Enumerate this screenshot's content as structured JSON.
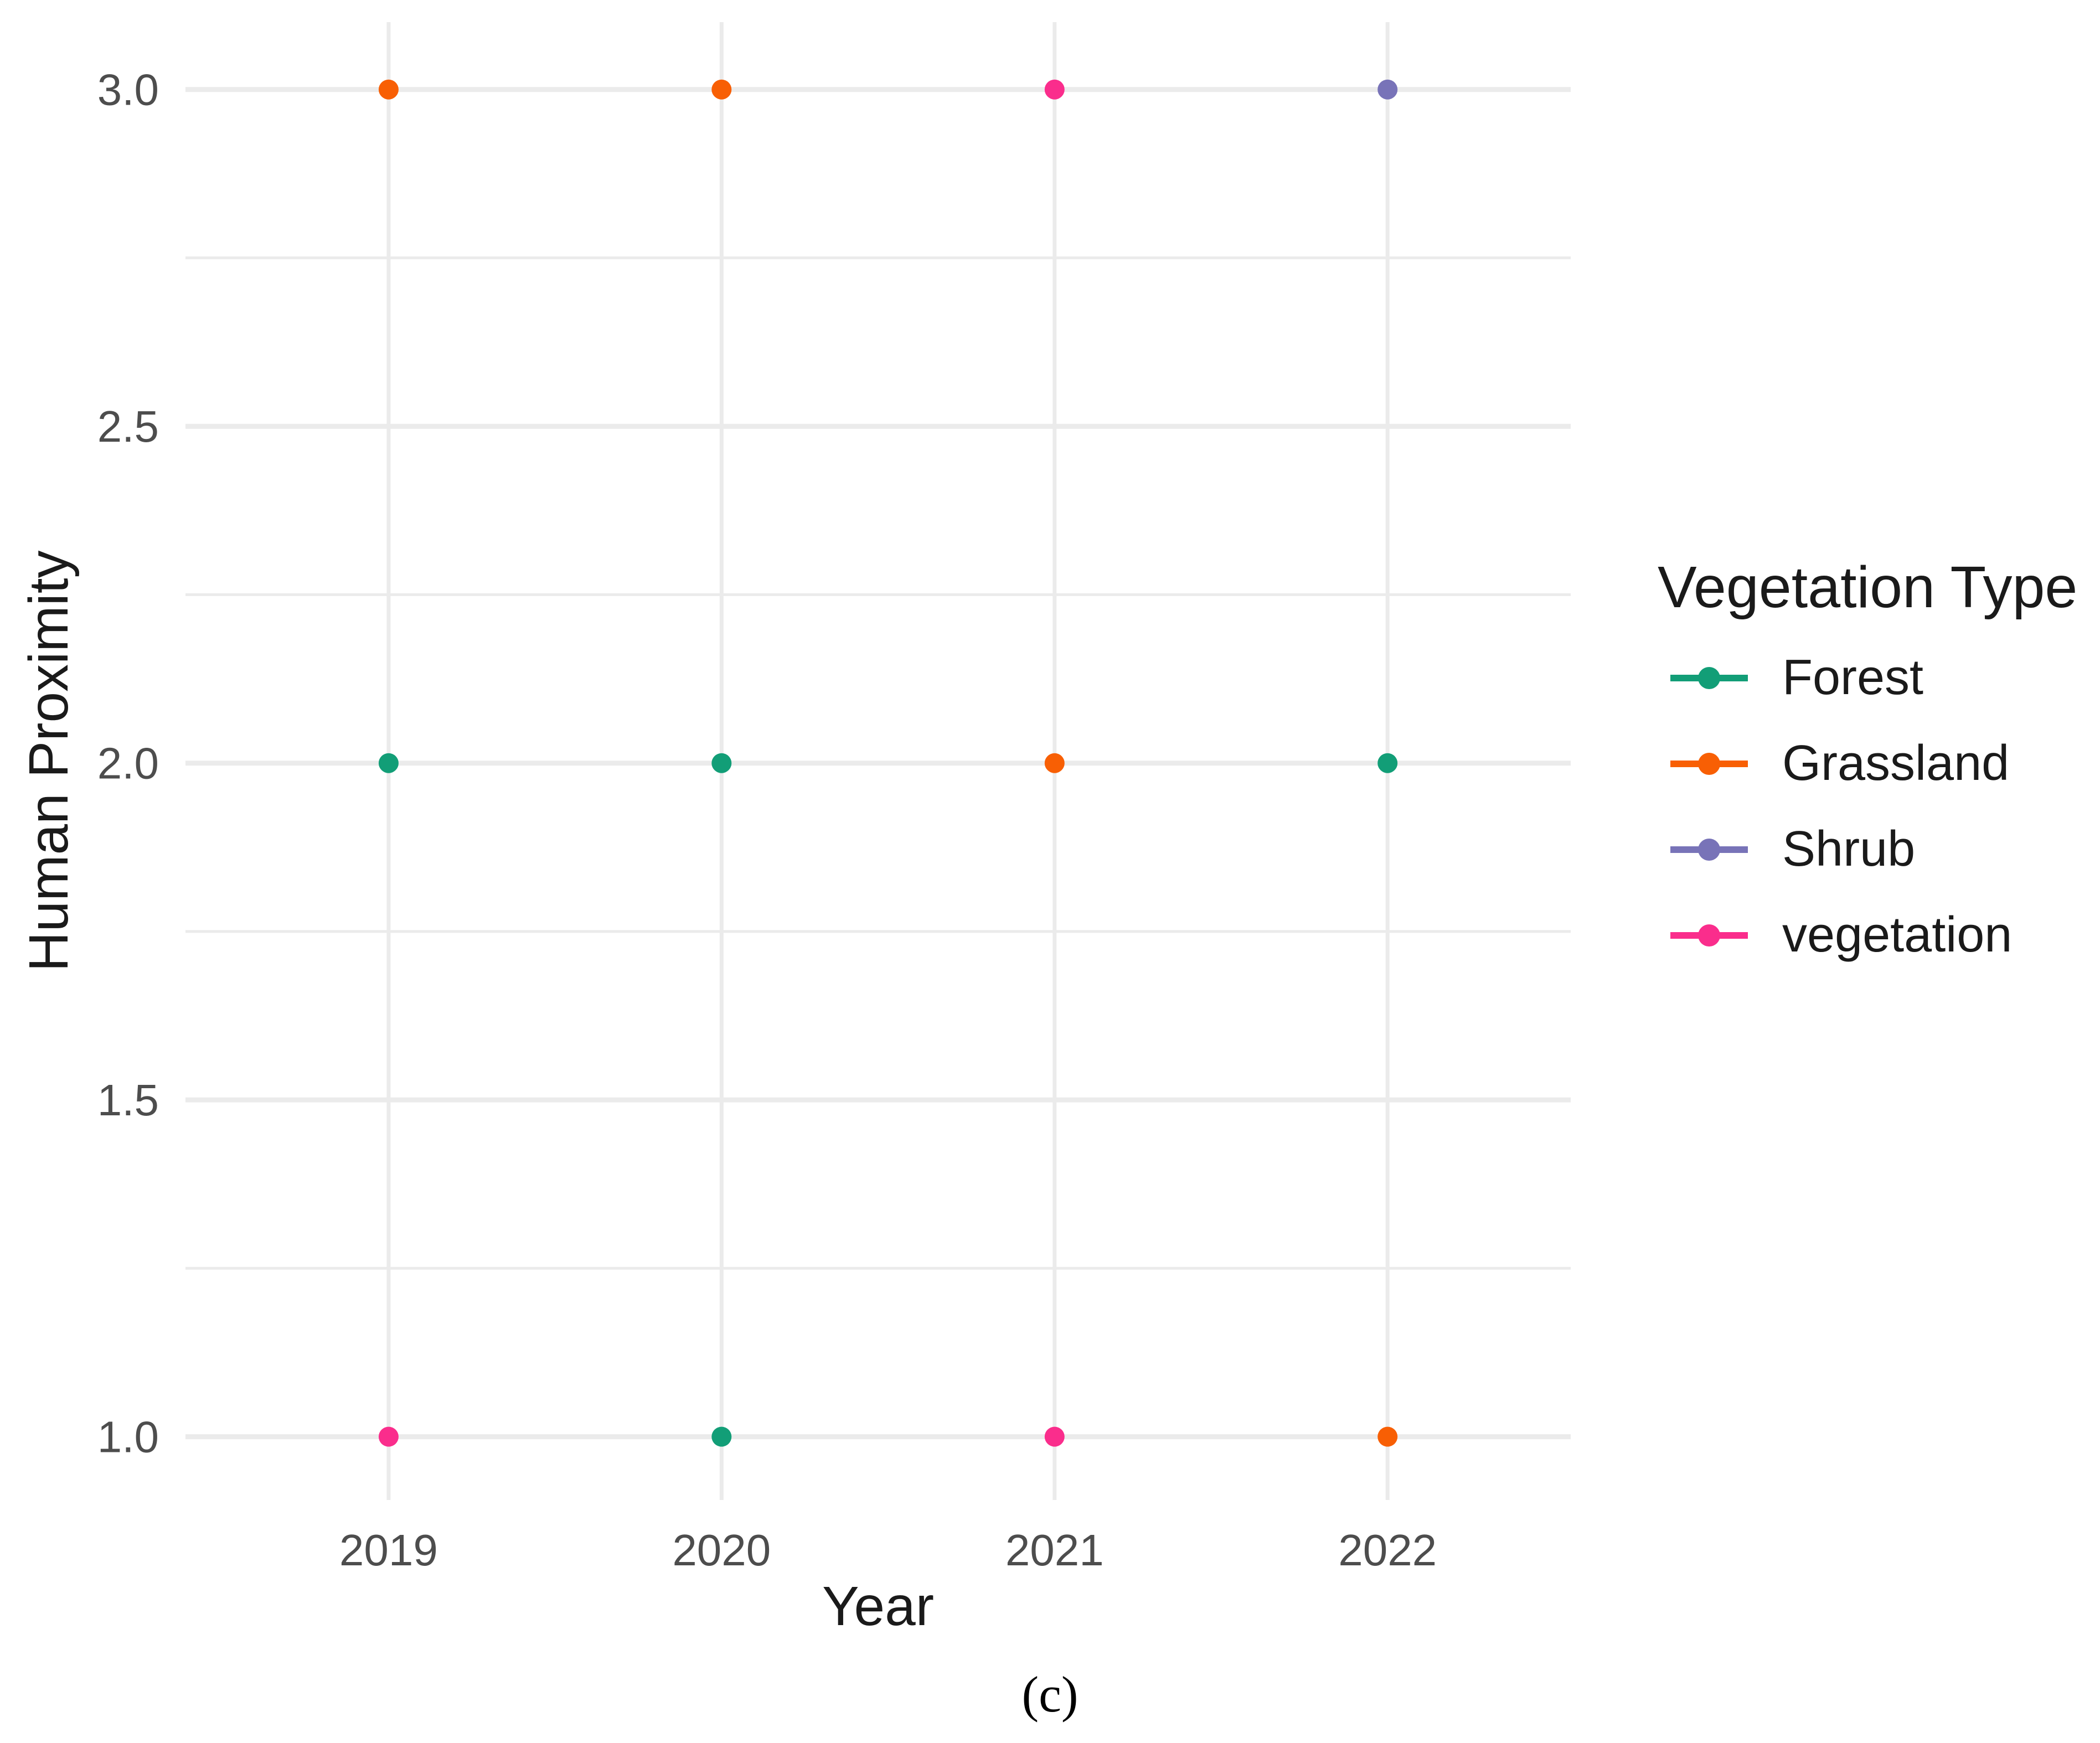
{
  "figure": {
    "caption": "(c)"
  },
  "chart_data": {
    "type": "scatter",
    "title": "",
    "xlabel": "Year",
    "ylabel": "Human Proximity",
    "legend_title": "Vegetation Type",
    "legend_position": "right",
    "grid": "major-and-minor-y, major-x, light gray on white",
    "xlim": [
      2018.39,
      2022.55
    ],
    "ylim": [
      0.906,
      3.1
    ],
    "x_ticks": [
      2019,
      2020,
      2021,
      2022
    ],
    "x_tick_labels": [
      "2019",
      "2020",
      "2021",
      "2022"
    ],
    "y_ticks": [
      3.0,
      2.5,
      2.0,
      1.5,
      1.0
    ],
    "y_tick_labels": [
      "3.0",
      "2.5",
      "2.0",
      "1.5",
      "1.0"
    ],
    "y_minor_ticks": [
      2.75,
      2.25,
      1.75,
      1.25
    ],
    "series": [
      {
        "name": "Forest",
        "color": "#129E77",
        "points": [
          [
            2019,
            2
          ],
          [
            2020,
            2
          ],
          [
            2020,
            1
          ],
          [
            2022,
            2
          ]
        ]
      },
      {
        "name": "Grassland",
        "color": "#F85F04",
        "points": [
          [
            2019,
            3
          ],
          [
            2020,
            3
          ],
          [
            2021,
            2
          ],
          [
            2022,
            1
          ]
        ]
      },
      {
        "name": "Shrub",
        "color": "#7873B8",
        "points": [
          [
            2022,
            3
          ]
        ]
      },
      {
        "name": "vegetation",
        "color": "#FA2D8C",
        "points": [
          [
            2019,
            1
          ],
          [
            2021,
            3
          ],
          [
            2021,
            1
          ]
        ]
      }
    ],
    "colors": {
      "background": "#FFFFFF",
      "gridline": "#EBEBEB",
      "tick_text": "#4D4D4D",
      "title_text": "#1A1A1A"
    }
  }
}
